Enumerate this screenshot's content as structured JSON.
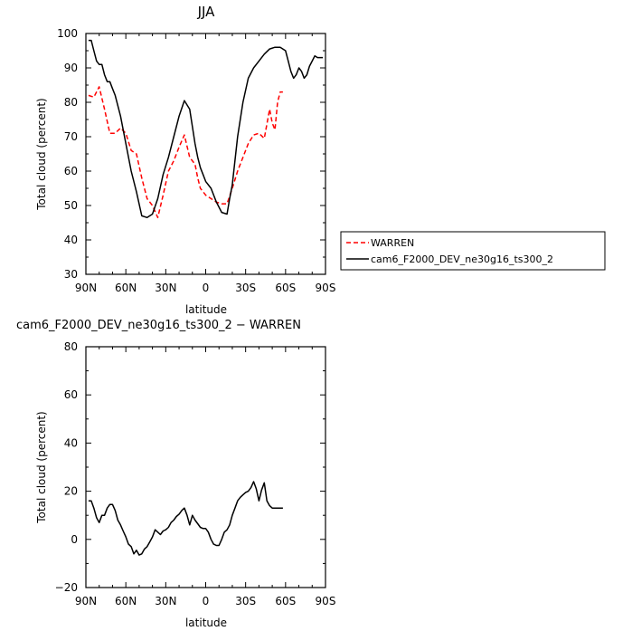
{
  "chart_data": [
    {
      "type": "line",
      "title": "JJA",
      "xlabel": "latitude",
      "ylabel": "Total cloud (percent)",
      "xlim": [
        -90,
        90
      ],
      "ylim": [
        30,
        100
      ],
      "x_ticks": [
        -90,
        -60,
        -30,
        0,
        30,
        60,
        90
      ],
      "x_tick_labels": [
        "90N",
        "60N",
        "30N",
        "0",
        "30S",
        "60S",
        "90S"
      ],
      "y_ticks": [
        30,
        40,
        50,
        60,
        70,
        80,
        90,
        100
      ],
      "y_tick_labels": [
        "30",
        "40",
        "50",
        "60",
        "70",
        "80",
        "90",
        "100"
      ],
      "grid": false,
      "legend_position": "right",
      "series": [
        {
          "name": "WARREN",
          "color": "#ff0000",
          "dash": "dashed",
          "x": [
            -88,
            -84,
            -80,
            -76,
            -72,
            -68,
            -64,
            -60,
            -56,
            -52,
            -48,
            -44,
            -40,
            -36,
            -32,
            -28,
            -24,
            -20,
            -16,
            -12,
            -8,
            -6,
            -4,
            -2,
            0,
            4,
            8,
            12,
            16,
            20,
            24,
            28,
            32,
            36,
            40,
            44,
            48,
            50,
            52,
            54,
            56,
            58
          ],
          "y": [
            82,
            81.5,
            84.5,
            78,
            71,
            71,
            72.5,
            71,
            66,
            65,
            58,
            52,
            50,
            46.5,
            53,
            60,
            63,
            67,
            70.5,
            64,
            62,
            58,
            55,
            54,
            53,
            52,
            51,
            50.5,
            50.5,
            55,
            60,
            64,
            68,
            70.5,
            71,
            69.5,
            78,
            74,
            72,
            80,
            83,
            83
          ]
        },
        {
          "name": "cam6_F2000_DEV_ne30g16_ts300_2",
          "color": "#000000",
          "dash": "solid",
          "x": [
            -88,
            -86,
            -84,
            -82,
            -80,
            -78,
            -76,
            -74,
            -72,
            -70,
            -68,
            -64,
            -60,
            -56,
            -52,
            -48,
            -44,
            -40,
            -36,
            -32,
            -28,
            -24,
            -20,
            -16,
            -12,
            -8,
            -6,
            -4,
            -2,
            0,
            4,
            8,
            12,
            16,
            18,
            20,
            24,
            28,
            32,
            36,
            40,
            44,
            48,
            52,
            56,
            60,
            62,
            64,
            66,
            68,
            70,
            72,
            74,
            76,
            78,
            80,
            82,
            84,
            86,
            88
          ],
          "y": [
            98,
            98,
            95,
            92,
            91,
            91,
            88,
            86,
            86,
            84,
            82,
            76,
            68,
            60,
            54,
            47,
            46.5,
            47.5,
            52,
            59,
            64,
            70,
            76,
            80.5,
            78,
            68,
            64,
            61,
            59,
            57,
            55,
            51,
            48,
            47.5,
            52,
            56,
            70,
            80,
            87,
            90,
            92,
            94,
            95.5,
            96,
            96,
            95,
            92,
            89,
            87,
            88,
            90,
            89,
            87,
            88,
            90.5,
            92,
            93.5,
            93,
            93,
            93
          ]
        }
      ]
    },
    {
      "type": "line",
      "title": "cam6_F2000_DEV_ne30g16_ts300_2 − WARREN",
      "xlabel": "latitude",
      "ylabel": "Total cloud (percent)",
      "xlim": [
        -90,
        90
      ],
      "ylim": [
        -20,
        80
      ],
      "x_ticks": [
        -90,
        -60,
        -30,
        0,
        30,
        60,
        90
      ],
      "x_tick_labels": [
        "90N",
        "60N",
        "30N",
        "0",
        "30S",
        "60S",
        "90S"
      ],
      "y_ticks": [
        -20,
        0,
        20,
        40,
        60,
        80
      ],
      "y_tick_labels": [
        "−20",
        "0",
        "20",
        "40",
        "60",
        "80"
      ],
      "grid": false,
      "series": [
        {
          "color": "#000000",
          "dash": "solid",
          "x": [
            -88,
            -86,
            -84,
            -82,
            -80,
            -78,
            -76,
            -74,
            -72,
            -70,
            -68,
            -66,
            -64,
            -62,
            -60,
            -58,
            -56,
            -54,
            -52,
            -50,
            -48,
            -46,
            -44,
            -42,
            -40,
            -38,
            -36,
            -34,
            -32,
            -30,
            -28,
            -26,
            -24,
            -22,
            -20,
            -18,
            -16,
            -14,
            -12,
            -10,
            -8,
            -6,
            -4,
            -2,
            0,
            2,
            4,
            6,
            8,
            10,
            12,
            14,
            16,
            18,
            20,
            22,
            24,
            26,
            28,
            30,
            32,
            34,
            36,
            38,
            40,
            42,
            44,
            46,
            48,
            50,
            52,
            54,
            56,
            58
          ],
          "y": [
            16,
            16,
            13,
            9,
            7,
            10,
            10,
            13,
            14.5,
            14.5,
            12,
            8,
            6,
            3.5,
            1,
            -2,
            -3,
            -6,
            -4.5,
            -6.5,
            -6,
            -4,
            -3,
            -1,
            1,
            4,
            3,
            2,
            3.5,
            4,
            5,
            7,
            8,
            9.5,
            10.5,
            12,
            13,
            10,
            6,
            10,
            8,
            6.5,
            5,
            4.5,
            4.5,
            3,
            0,
            -2,
            -2.5,
            -2.5,
            0,
            3,
            4,
            6,
            10,
            13,
            16,
            17.5,
            18.5,
            19.5,
            20,
            21.5,
            24,
            21,
            16,
            20.5,
            23.5,
            16,
            14,
            13,
            13,
            13,
            13,
            13
          ]
        }
      ]
    }
  ]
}
